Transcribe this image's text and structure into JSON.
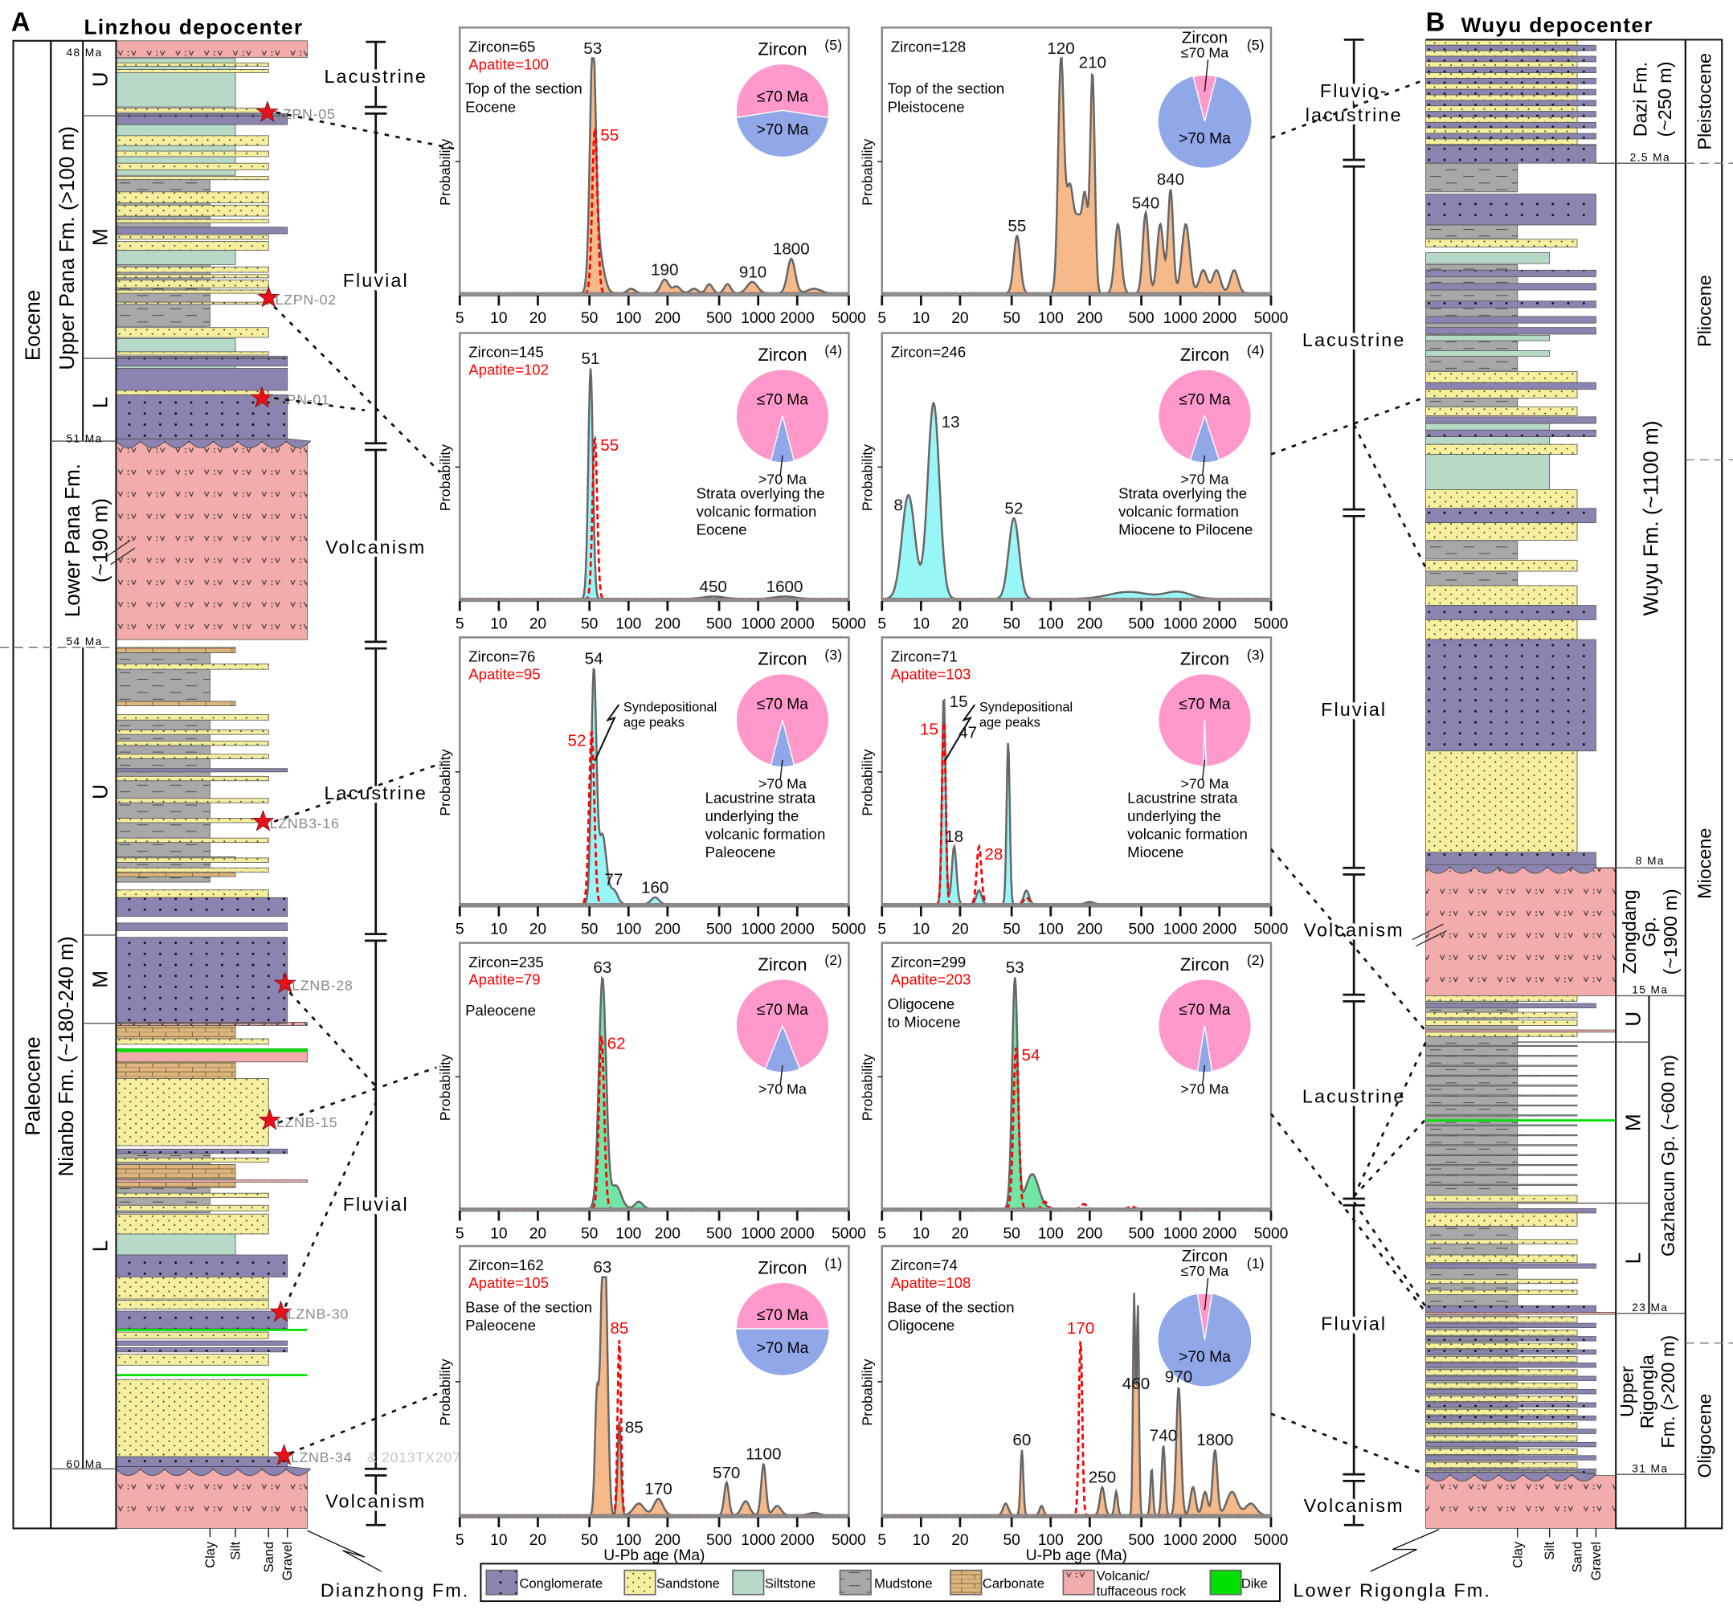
{
  "panel_a": {
    "letter": "A",
    "title": "Linzhou depocenter",
    "epochs": [
      "Eocene",
      "Paleocene"
    ],
    "formations": [
      "Upper Pana Fm. (>100 m)",
      "Lower Pana Fm.",
      "(~190 m)",
      "Nianbo Fm. (~180-240 m)"
    ],
    "members": [
      "U",
      "M",
      "L",
      "U",
      "M",
      "L"
    ],
    "ages": [
      "48 Ma",
      "51 Ma",
      "54 Ma",
      "60 Ma"
    ],
    "environments": [
      "Lacustrine",
      "Fluvial",
      "Volcanism",
      "Lacustrine",
      "Fluvial",
      "Volcanism"
    ],
    "samples": [
      "LZPN-05",
      "LZPN-02",
      "LZPN-01",
      "LZNB3-16",
      "LZNB-28",
      "LZNB-15",
      "LZNB-30",
      "LZNB-34"
    ],
    "sample_extra": "& 2013TX207",
    "grain_sizes": [
      "Clay",
      "Silt",
      "Sand",
      "Gravel"
    ],
    "base_unit": "Dianzhong Fm."
  },
  "panel_b": {
    "letter": "B",
    "title": "Wuyu depocenter",
    "epochs": [
      "Pleistocene",
      "Pliocene",
      "Miocene",
      "Oligocene"
    ],
    "formations": [
      "Dazi Fm.",
      "(~250 m)",
      "Wuyu Fm. (~1100 m)",
      "Zongdang",
      "Gp.",
      "(~1900 m)",
      "Gazhacun Gp. (~600 m)",
      "Upper",
      "Rigongla",
      "Fm. (>200 m)"
    ],
    "members": [
      "U",
      "M",
      "L"
    ],
    "ages": [
      "2.5 Ma",
      "8 Ma",
      "15 Ma",
      "23 Ma",
      "31 Ma"
    ],
    "environments": [
      "Fluvio-",
      "lacustrine",
      "Lacustrine",
      "Fluvial",
      "Volcanism",
      "Lacustrine",
      "Fluvial",
      "Volcanism"
    ],
    "grain_sizes": [
      "Clay",
      "Silt",
      "Sand",
      "Gravel"
    ],
    "base_unit": "Lower Rigongla Fm."
  },
  "legend": [
    {
      "label": "Conglomerate",
      "type": "co"
    },
    {
      "label": "Sandstone",
      "type": "sa"
    },
    {
      "label": "Siltstone",
      "type": "si"
    },
    {
      "label": "Mudstone",
      "type": "mu"
    },
    {
      "label": "Carbonate",
      "type": "ca"
    },
    {
      "label": "Volcanic/",
      "label2": "tuffaceous rock",
      "type": "v"
    },
    {
      "label": "Dike",
      "type": "dk"
    }
  ],
  "colors": {
    "conglomerate": "#8c84b0",
    "sandstone": "#f5ef9e",
    "siltstone": "#b6dac6",
    "mudstone": "#a8a8a8",
    "carbonate": "#dcb67c",
    "volcanic": "#f2acac",
    "dike": "#00e000",
    "pie_le70": "#ff99cc",
    "pie_gt70": "#90a8e8",
    "apatite": "#ff0000",
    "fill_orange": "#f5b98a",
    "fill_cyan": "#99f6f6",
    "fill_green": "#72e6a6"
  },
  "axis": {
    "ylabel": "Probability",
    "xlabel": "U-Pb age (Ma)",
    "ticks": [
      "5",
      "10",
      "20",
      "50",
      "100",
      "200",
      "500",
      "1000",
      "2000",
      "5000"
    ]
  },
  "pie_labels": {
    "title": "Zircon",
    "le70": "≤70  Ma",
    "gt70": ">70  Ma"
  },
  "chart_data": [
    {
      "type": "area",
      "number": "(5)",
      "zircon": "Zircon=65",
      "apatite": "Apatite=100",
      "desc": [
        "Top of the section",
        "Eocene"
      ],
      "desc_place": "top-left",
      "fill": "#f5b98a",
      "xlim": [
        5,
        5000
      ],
      "x_scale": "log",
      "zircon_peaks": [
        [
          53,
          1.0,
          0.022
        ],
        [
          58,
          0.2,
          0.04
        ],
        [
          105,
          0.02,
          0.03
        ],
        [
          190,
          0.06,
          0.03
        ],
        [
          235,
          0.03,
          0.03
        ],
        [
          320,
          0.02,
          0.03
        ],
        [
          420,
          0.04,
          0.025
        ],
        [
          580,
          0.04,
          0.025
        ],
        [
          900,
          0.05,
          0.04
        ],
        [
          1800,
          0.15,
          0.03
        ],
        [
          2700,
          0.02,
          0.05
        ]
      ],
      "apatite_peaks": [
        [
          55,
          0.72,
          0.02
        ]
      ],
      "labels": [
        {
          "text": "53",
          "age": 53,
          "s": "z"
        },
        {
          "text": "55",
          "age": 55,
          "s": "a",
          "side": "right"
        },
        {
          "text": "190",
          "age": 190,
          "s": "z"
        },
        {
          "text": "910",
          "age": 910,
          "s": "z"
        },
        {
          "text": "1800",
          "age": 1800,
          "s": "z"
        }
      ],
      "zircon_le70_fraction": 0.55
    },
    {
      "type": "area",
      "number": "(5)",
      "zircon": "Zircon=128",
      "desc": [
        "Top of the section",
        "Pleistocene"
      ],
      "desc_place": "top-left",
      "fill": "#f5b98a",
      "xlim": [
        5,
        5000
      ],
      "x_scale": "log",
      "zircon_peaks": [
        [
          55,
          0.25,
          0.025
        ],
        [
          120,
          1.0,
          0.022
        ],
        [
          140,
          0.45,
          0.03
        ],
        [
          165,
          0.3,
          0.03
        ],
        [
          185,
          0.35,
          0.02
        ],
        [
          210,
          0.95,
          0.018
        ],
        [
          330,
          0.3,
          0.025
        ],
        [
          540,
          0.35,
          0.022
        ],
        [
          700,
          0.3,
          0.025
        ],
        [
          840,
          0.45,
          0.02
        ],
        [
          1100,
          0.3,
          0.03
        ],
        [
          1500,
          0.1,
          0.03
        ],
        [
          1900,
          0.1,
          0.03
        ],
        [
          2600,
          0.1,
          0.03
        ]
      ],
      "apatite_peaks": [],
      "labels": [
        {
          "text": "120",
          "age": 120,
          "s": "z"
        },
        {
          "text": "210",
          "age": 210,
          "s": "z"
        },
        {
          "text": "55",
          "age": 55,
          "s": "z"
        },
        {
          "text": "540",
          "age": 540,
          "s": "z"
        },
        {
          "text": "840",
          "age": 840,
          "s": "z"
        }
      ],
      "zircon_le70_fraction": 0.08
    },
    {
      "type": "area",
      "number": "(4)",
      "zircon": "Zircon=145",
      "apatite": "Apatite=102",
      "desc": [
        "Strata overlying the",
        "volcanic formation",
        "Eocene"
      ],
      "desc_place": "below-pie",
      "fill": "#99f6f6",
      "xlim": [
        5,
        5000
      ],
      "x_scale": "log",
      "zircon_peaks": [
        [
          51,
          1.0,
          0.018
        ],
        [
          450,
          0.01,
          0.08
        ],
        [
          1600,
          0.01,
          0.08
        ]
      ],
      "apatite_peaks": [
        [
          55,
          0.7,
          0.018
        ]
      ],
      "labels": [
        {
          "text": "51",
          "age": 51,
          "s": "z"
        },
        {
          "text": "55",
          "age": 55,
          "s": "a",
          "side": "right"
        },
        {
          "text": "450",
          "age": 450,
          "s": "z"
        },
        {
          "text": "1600",
          "age": 1600,
          "s": "z"
        }
      ],
      "zircon_le70_fraction": 0.92
    },
    {
      "type": "area",
      "number": "(4)",
      "zircon": "Zircon=246",
      "desc": [
        "Strata overlying the",
        "volcanic formation",
        "Miocene to Pilocene"
      ],
      "desc_place": "below-pie",
      "fill": "#99f6f6",
      "xlim": [
        5,
        5000
      ],
      "x_scale": "log",
      "zircon_peaks": [
        [
          8,
          0.45,
          0.05
        ],
        [
          12.5,
          0.85,
          0.045
        ],
        [
          52,
          0.35,
          0.04
        ],
        [
          400,
          0.03,
          0.15
        ],
        [
          950,
          0.03,
          0.1
        ]
      ],
      "apatite_peaks": [],
      "labels": [
        {
          "text": "8",
          "age": 8,
          "s": "z",
          "side": "left"
        },
        {
          "text": "13",
          "age": 13,
          "s": "z",
          "side": "right"
        },
        {
          "text": "52",
          "age": 52,
          "s": "z"
        }
      ],
      "zircon_le70_fraction": 0.9
    },
    {
      "type": "area",
      "number": "(3)",
      "zircon": "Zircon=76",
      "apatite": "Apatite=95",
      "desc": [
        "Lacustrine strata",
        "underlying the",
        "volcanic formation",
        "Paleocene"
      ],
      "desc_place": "below-pie",
      "fill": "#99f6f6",
      "xlim": [
        5,
        5000
      ],
      "x_scale": "log",
      "annotation": [
        "Syndepositional",
        "age peaks"
      ],
      "zircon_peaks": [
        [
          54,
          1.0,
          0.02
        ],
        [
          63,
          0.3,
          0.03
        ],
        [
          77,
          0.06,
          0.03
        ],
        [
          160,
          0.03,
          0.03
        ]
      ],
      "apatite_peaks": [
        [
          52,
          0.75,
          0.02
        ]
      ],
      "labels": [
        {
          "text": "54",
          "age": 54,
          "s": "z"
        },
        {
          "text": "52",
          "age": 52,
          "s": "a",
          "side": "left"
        },
        {
          "text": "77",
          "age": 77,
          "s": "z"
        },
        {
          "text": "160",
          "age": 160,
          "s": "z"
        }
      ],
      "zircon_le70_fraction": 0.92
    },
    {
      "type": "area",
      "number": "(3)",
      "zircon": "Zircon=71",
      "apatite": "Apatite=103",
      "desc": [
        "Lacustrine strata",
        "underlying the",
        "volcanic formation",
        "Miocene"
      ],
      "desc_place": "below-pie",
      "fill": "#99f6f6",
      "xlim": [
        5,
        5000
      ],
      "x_scale": "log",
      "annotation": [
        "Syndepositional",
        "age peaks"
      ],
      "zircon_peaks": [
        [
          15,
          0.9,
          0.014
        ],
        [
          18,
          0.25,
          0.018
        ],
        [
          28,
          0.06,
          0.02
        ],
        [
          47,
          0.7,
          0.012
        ],
        [
          65,
          0.06,
          0.02
        ],
        [
          200,
          0.01,
          0.03
        ]
      ],
      "apatite_peaks": [
        [
          15,
          0.8,
          0.014
        ],
        [
          28,
          0.25,
          0.018
        ],
        [
          65,
          0.03,
          0.02
        ]
      ],
      "labels": [
        {
          "text": "15",
          "age": 15,
          "s": "z",
          "side": "right"
        },
        {
          "text": "15",
          "age": 15,
          "s": "a",
          "side": "left"
        },
        {
          "text": "18",
          "age": 18,
          "s": "z"
        },
        {
          "text": "28",
          "age": 28,
          "s": "a",
          "side": "right"
        },
        {
          "text": "47",
          "age": 47,
          "s": "z"
        }
      ],
      "zircon_le70_fraction": 0.99
    },
    {
      "type": "area",
      "number": "(2)",
      "zircon": "Zircon=235",
      "apatite": "Apatite=79",
      "desc": [
        "Paleocene"
      ],
      "desc_place": "top-left",
      "fill": "#72e6a6",
      "xlim": [
        5,
        5000
      ],
      "x_scale": "log",
      "zircon_peaks": [
        [
          63,
          1.0,
          0.028
        ],
        [
          80,
          0.1,
          0.04
        ],
        [
          120,
          0.03,
          0.03
        ]
      ],
      "apatite_peaks": [
        [
          62,
          0.75,
          0.02
        ]
      ],
      "labels": [
        {
          "text": "63",
          "age": 63,
          "s": "z"
        },
        {
          "text": "62",
          "age": 62,
          "s": "a",
          "side": "right"
        }
      ],
      "zircon_le70_fraction": 0.88
    },
    {
      "type": "area",
      "number": "(2)",
      "zircon": "Zircon=299",
      "apatite": "Apatite=203",
      "desc": [
        "Oligocene",
        "to Miocene"
      ],
      "desc_place": "top-left",
      "fill": "#72e6a6",
      "xlim": [
        5,
        5000
      ],
      "x_scale": "log",
      "zircon_peaks": [
        [
          53,
          1.0,
          0.022
        ],
        [
          72,
          0.15,
          0.05
        ]
      ],
      "apatite_peaks": [
        [
          54,
          0.7,
          0.02
        ],
        [
          90,
          0.03,
          0.02
        ],
        [
          180,
          0.02,
          0.02
        ],
        [
          420,
          0.01,
          0.02
        ]
      ],
      "labels": [
        {
          "text": "53",
          "age": 53,
          "s": "z"
        },
        {
          "text": "54",
          "age": 54,
          "s": "a",
          "side": "right"
        }
      ],
      "zircon_le70_fraction": 0.95
    },
    {
      "type": "area",
      "number": "(1)",
      "zircon": "Zircon=162",
      "apatite": "Apatite=105",
      "desc": [
        "Base of the section",
        "Paleocene"
      ],
      "desc_place": "top-left",
      "fill": "#f5b98a",
      "xlim": [
        5,
        5000
      ],
      "x_scale": "log",
      "zircon_peaks": [
        [
          57,
          0.5,
          0.015
        ],
        [
          63,
          0.9,
          0.018
        ],
        [
          67,
          0.75,
          0.018
        ],
        [
          85,
          0.4,
          0.013
        ],
        [
          120,
          0.05,
          0.04
        ],
        [
          170,
          0.07,
          0.035
        ],
        [
          570,
          0.14,
          0.018
        ],
        [
          800,
          0.06,
          0.03
        ],
        [
          1100,
          0.22,
          0.018
        ],
        [
          1400,
          0.04,
          0.03
        ],
        [
          2700,
          0.01,
          0.04
        ]
      ],
      "apatite_peaks": [
        [
          85,
          0.75,
          0.013
        ]
      ],
      "labels": [
        {
          "text": "63",
          "age": 63,
          "s": "z"
        },
        {
          "text": "85",
          "age": 88,
          "s": "a",
          "side": "top"
        },
        {
          "text": "85",
          "age": 85,
          "s": "z",
          "side": "right"
        },
        {
          "text": "170",
          "age": 170,
          "s": "z"
        },
        {
          "text": "570",
          "age": 570,
          "s": "z"
        },
        {
          "text": "1100",
          "age": 1100,
          "s": "z"
        }
      ],
      "zircon_le70_fraction": 0.5
    },
    {
      "type": "area",
      "number": "(1)",
      "zircon": "Zircon=74",
      "apatite": "Apatite=108",
      "desc": [
        "Base of the section",
        "Oligocene"
      ],
      "desc_place": "top-left",
      "fill": "#f5b98a",
      "xlim": [
        5,
        5000
      ],
      "x_scale": "log",
      "zircon_peaks": [
        [
          45,
          0.05,
          0.02
        ],
        [
          60,
          0.28,
          0.011
        ],
        [
          85,
          0.04,
          0.015
        ],
        [
          250,
          0.12,
          0.018
        ],
        [
          320,
          0.1,
          0.012
        ],
        [
          440,
          0.95,
          0.009
        ],
        [
          470,
          0.9,
          0.009
        ],
        [
          600,
          0.2,
          0.01
        ],
        [
          740,
          0.3,
          0.013
        ],
        [
          970,
          0.55,
          0.018
        ],
        [
          1250,
          0.12,
          0.02
        ],
        [
          1550,
          0.1,
          0.02
        ],
        [
          1850,
          0.28,
          0.018
        ],
        [
          2500,
          0.1,
          0.04
        ],
        [
          3500,
          0.05,
          0.04
        ]
      ],
      "apatite_peaks": [
        [
          170,
          0.75,
          0.013
        ]
      ],
      "labels": [
        {
          "text": "460",
          "age": 455,
          "s": "z"
        },
        {
          "text": "970",
          "age": 970,
          "s": "z"
        },
        {
          "text": "740",
          "age": 740,
          "s": "z"
        },
        {
          "text": "1800",
          "age": 1850,
          "s": "z"
        },
        {
          "text": "60",
          "age": 60,
          "s": "z"
        },
        {
          "text": "250",
          "age": 250,
          "s": "z"
        },
        {
          "text": "170",
          "age": 170,
          "s": "a",
          "side": "top"
        }
      ],
      "zircon_le70_fraction": 0.05
    }
  ]
}
